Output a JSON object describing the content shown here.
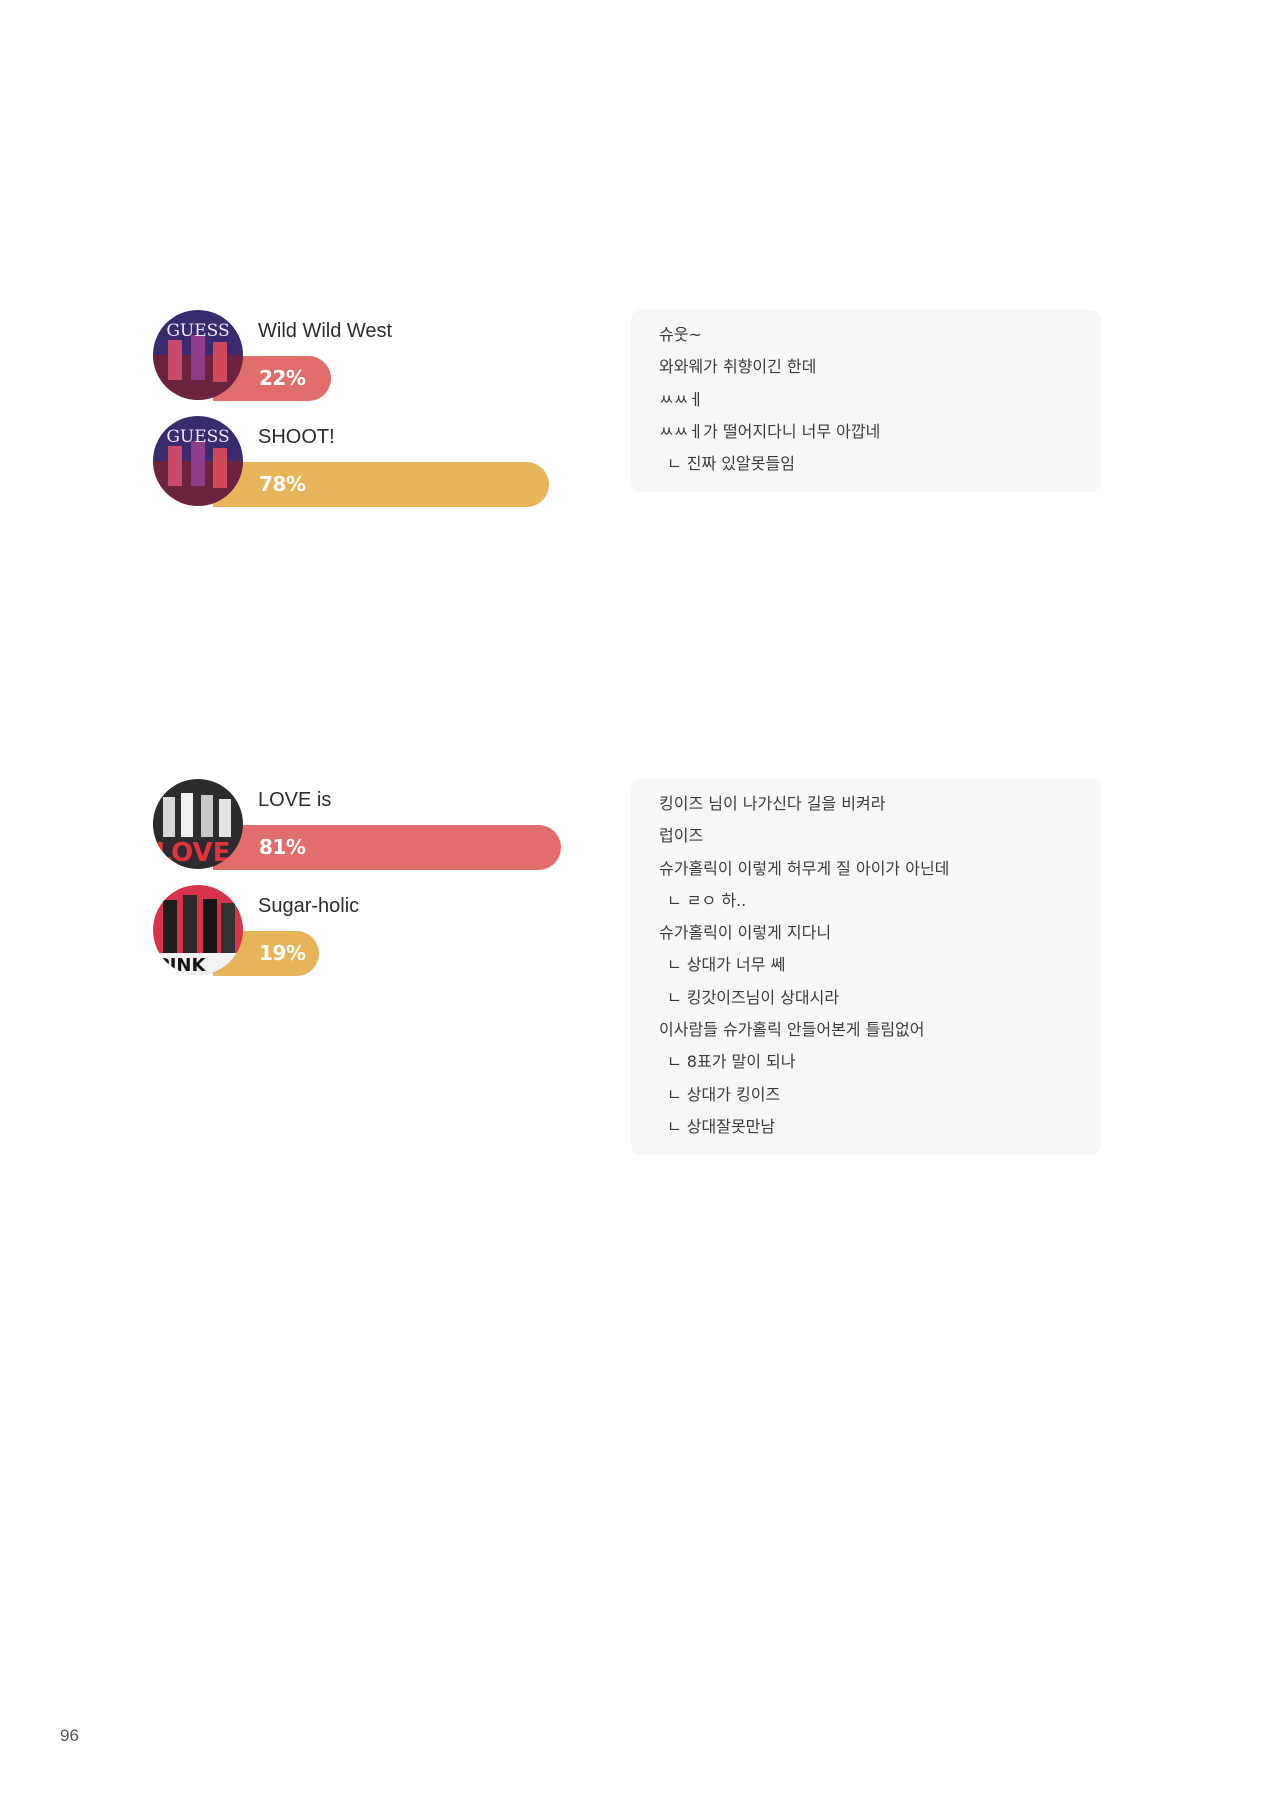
{
  "colors": {
    "red": "#e26e6b",
    "yellow": "#e8b45a",
    "panel": "#f7f7f7"
  },
  "polls": [
    {
      "options": [
        {
          "title": "Wild Wild West",
          "percent_label": "22%",
          "percent": 22,
          "color": "red",
          "avatar_icon": "album-cover-icon"
        },
        {
          "title": "SHOOT!",
          "percent_label": "78%",
          "percent": 78,
          "color": "yellow",
          "avatar_icon": "album-cover-icon"
        }
      ],
      "comments": [
        {
          "text": "슈웃~"
        },
        {
          "text": "와와웨가 취향이긴 한데"
        },
        {
          "text": "ㅆㅆㅔ"
        },
        {
          "text": "ㅆㅆㅔ가 떨어지다니 너무 아깝네"
        },
        {
          "text": "ㄴ 진짜 있알못들임"
        }
      ]
    },
    {
      "options": [
        {
          "title": "LOVE is",
          "percent_label": "81%",
          "percent": 81,
          "color": "red",
          "avatar_icon": "album-cover-icon"
        },
        {
          "title": "Sugar-holic",
          "percent_label": "19%",
          "percent": 19,
          "color": "yellow",
          "avatar_icon": "album-cover-icon"
        }
      ],
      "comments": [
        {
          "text": "킹이즈 님이 나가신다 길을 비켜라"
        },
        {
          "text": "럽이즈"
        },
        {
          "text": "슈가홀릭이 이렇게 허무게 질 아이가 아닌데"
        },
        {
          "text": "ㄴ ㄹㅇ 하.."
        },
        {
          "text": "슈가홀릭이 이렇게 지다니"
        },
        {
          "text": "ㄴ 상대가 너무 쎄"
        },
        {
          "text": "ㄴ 킹갓이즈님이 상대시라"
        },
        {
          "text": "이사람들 슈가홀릭 안들어본게 틀림없어"
        },
        {
          "text": "ㄴ 8표가 말이 되나"
        },
        {
          "text": "ㄴ 상대가 킹이즈"
        },
        {
          "text": "ㄴ 상대잘못만남"
        }
      ]
    }
  ],
  "page_number": "96"
}
